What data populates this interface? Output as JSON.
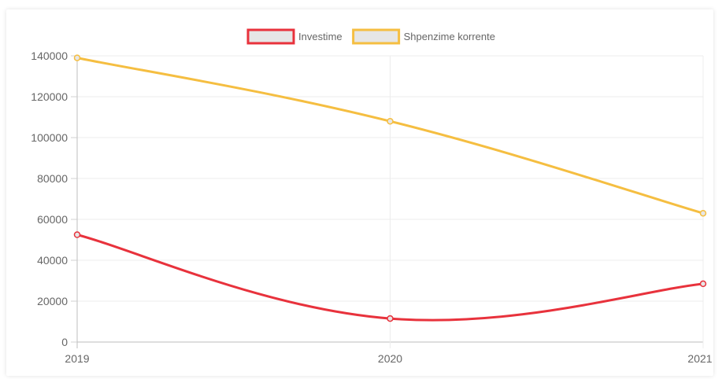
{
  "chart_data": {
    "type": "line",
    "x": [
      "2019",
      "2020",
      "2021"
    ],
    "ylim": [
      0,
      140000
    ],
    "yticks": [
      0,
      20000,
      40000,
      60000,
      80000,
      100000,
      120000,
      140000
    ],
    "grid": true,
    "legend_position": "top",
    "series": [
      {
        "name": "Investime",
        "values": [
          52500,
          11500,
          28500
        ],
        "color": "#e8323c",
        "fill": "#e6e6e6"
      },
      {
        "name": "Shpenzime korrente",
        "values": [
          139000,
          108000,
          63000
        ],
        "color": "#f5be41",
        "fill": "#e6e6e6"
      }
    ]
  }
}
